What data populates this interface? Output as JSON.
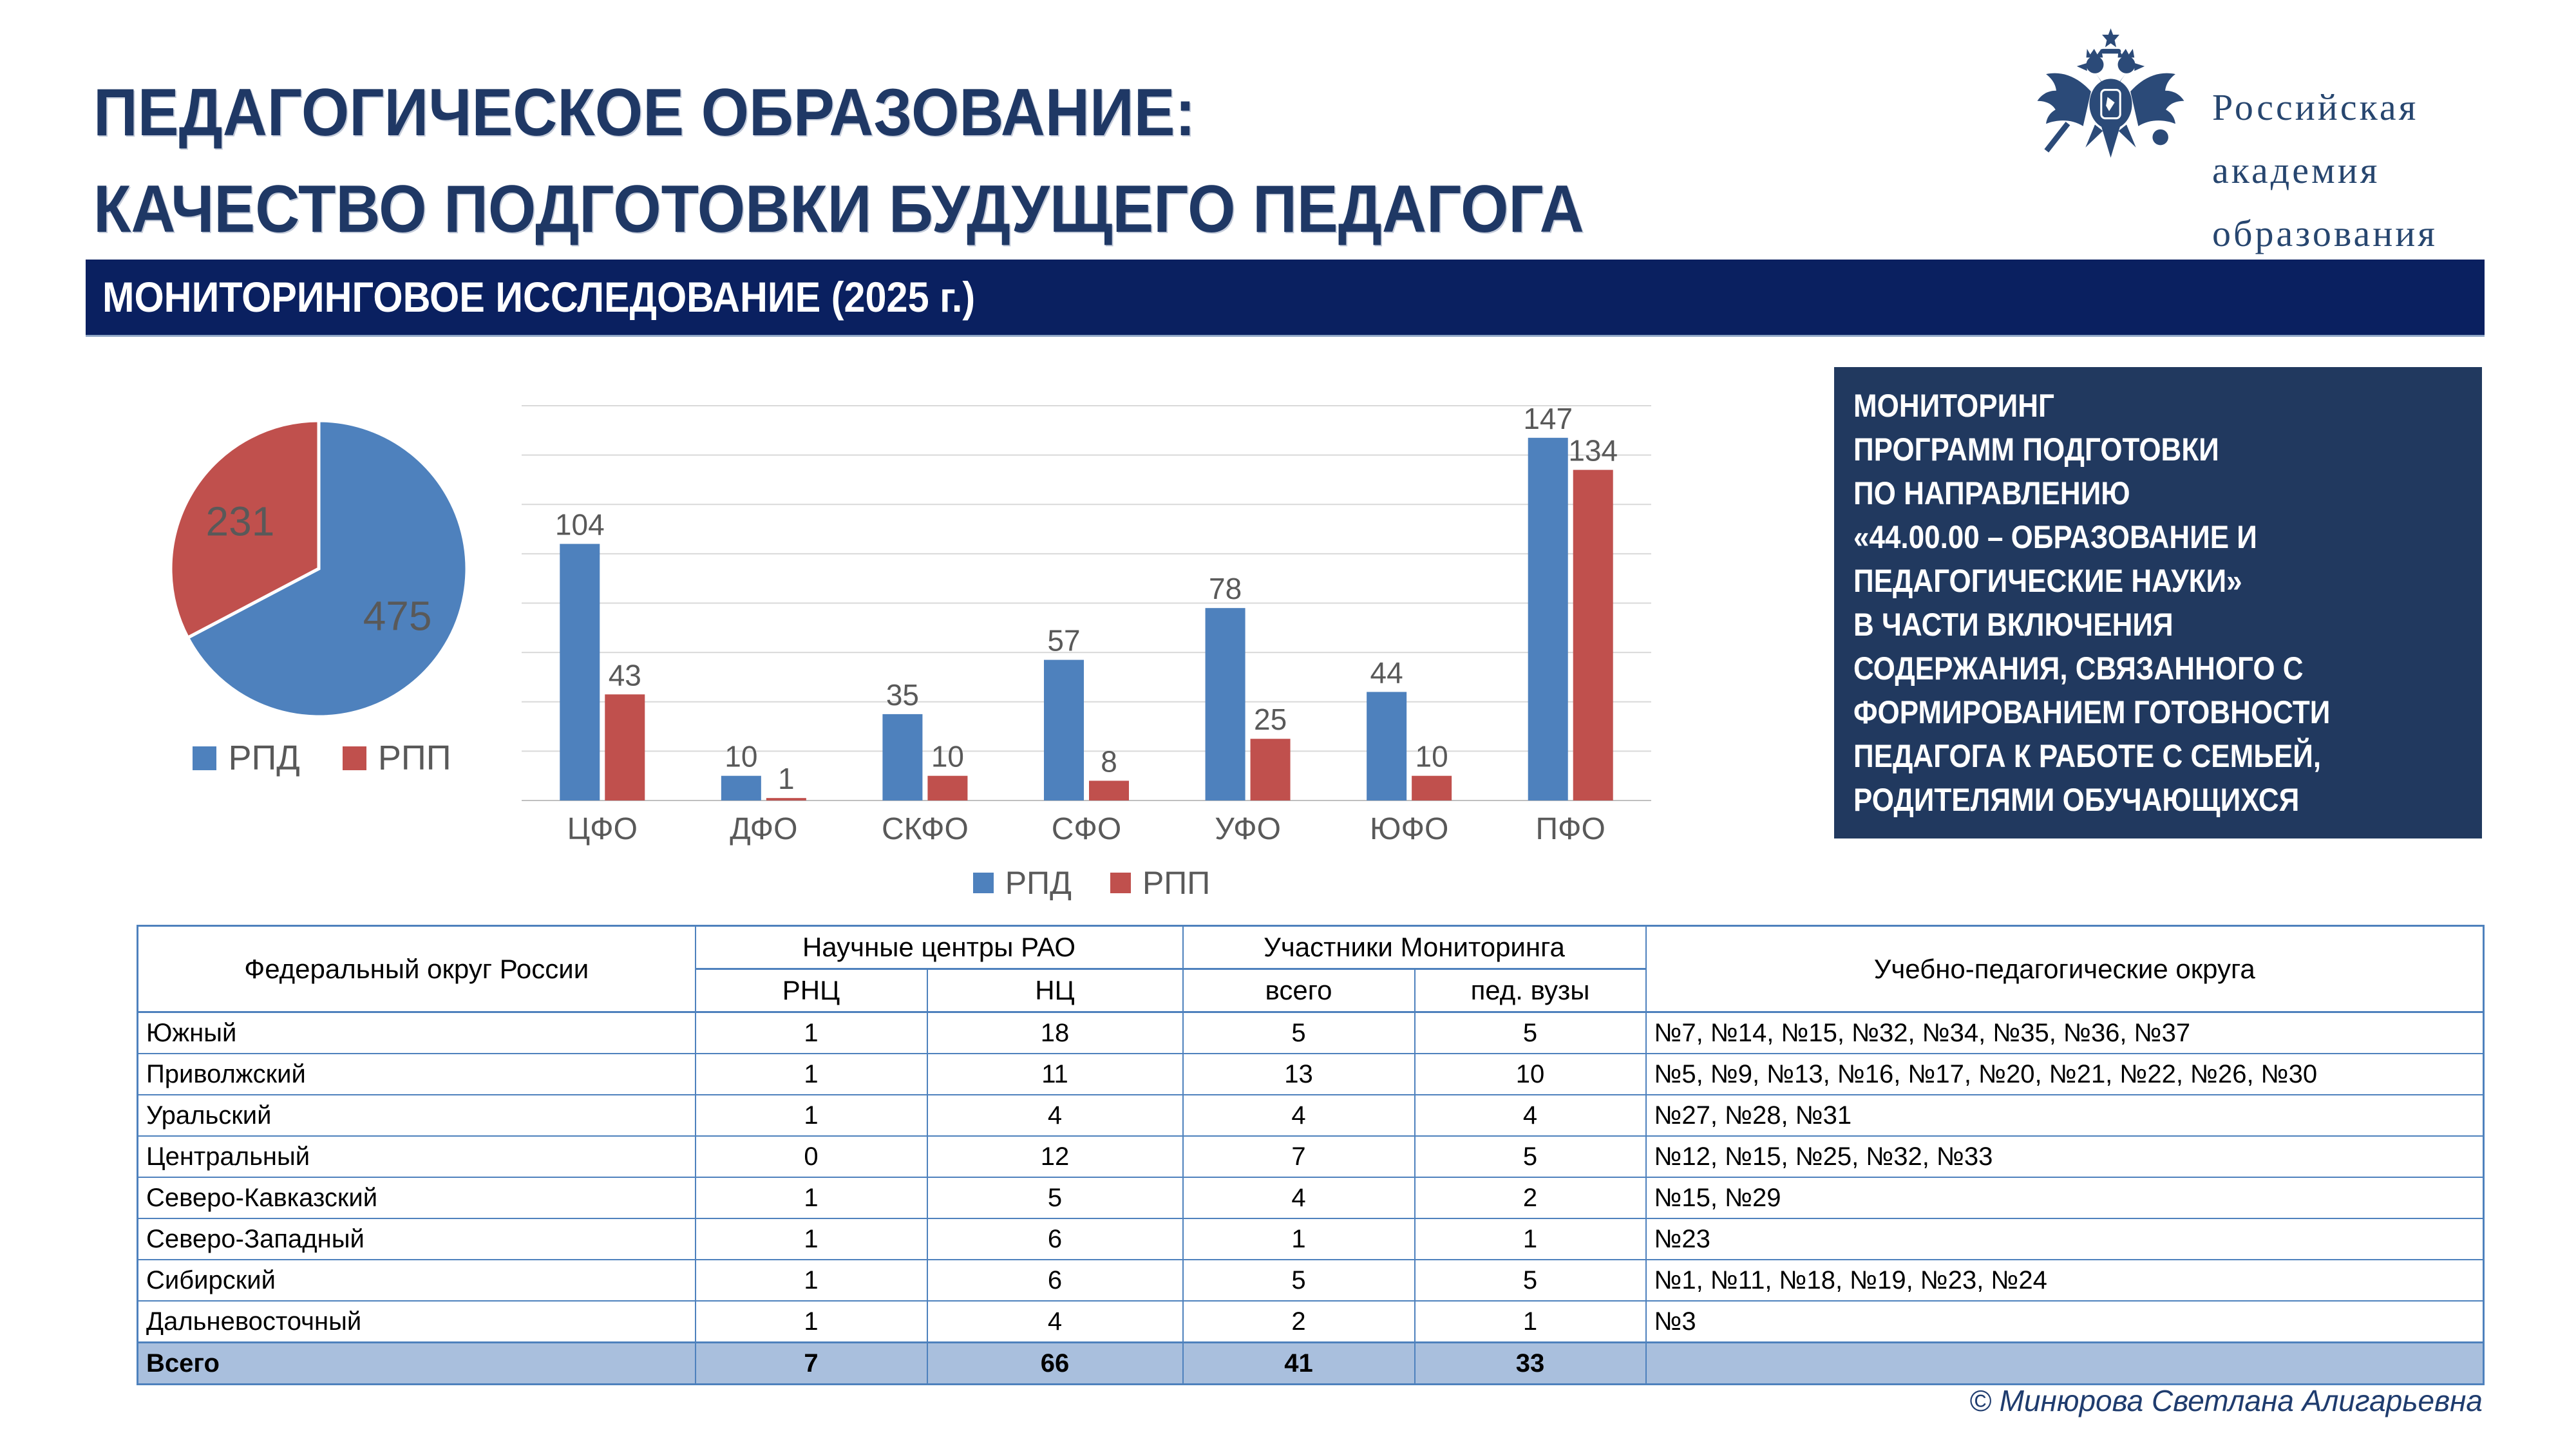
{
  "header": {
    "title_line1": "ПЕДАГОГИЧЕСКОЕ ОБРАЗОВАНИЕ:",
    "title_line2": "КАЧЕСТВО ПОДГОТОВКИ БУДУЩЕГО ПЕДАГОГА",
    "banner": "МОНИТОРИНГОВОЕ ИССЛЕДОВАНИЕ (2025 г.)",
    "logo": {
      "emblem": "double-headed-eagle",
      "line1": "Российская",
      "line2": "академия",
      "line3": "образования"
    }
  },
  "info_box": {
    "lines": [
      "МОНИТОРИНГ",
      "ПРОГРАММ ПОДГОТОВКИ",
      "ПО НАПРАВЛЕНИЮ",
      "«44.00.00 – ОБРАЗОВАНИЕ И",
      "ПЕДАГОГИЧЕСКИЕ НАУКИ»",
      "В ЧАСТИ ВКЛЮЧЕНИЯ",
      "СОДЕРЖАНИЯ, СВЯЗАННОГО С",
      "ФОРМИРОВАНИЕМ ГОТОВНОСТИ",
      "ПЕДАГОГА К РАБОТЕ С СЕМЬЕЙ,",
      "РОДИТЕЛЯМИ ОБУЧАЮЩИХСЯ"
    ]
  },
  "chart_data": [
    {
      "type": "pie",
      "labels": [
        "РПД",
        "РПП"
      ],
      "values": [
        475,
        231
      ],
      "colors": [
        "#4E81BD",
        "#C0504D"
      ],
      "legend": [
        "РПД",
        "РПП"
      ],
      "legend_position": "bottom",
      "start_angle_deg": -90,
      "direction": "clockwise"
    },
    {
      "type": "bar",
      "categories": [
        "ЦФО",
        "ДФО",
        "СКФО",
        "СФО",
        "УФО",
        "ЮФО",
        "ПФО"
      ],
      "series": [
        {
          "name": "РПД",
          "color": "#4E81BD",
          "values": [
            104,
            10,
            35,
            57,
            78,
            44,
            147
          ]
        },
        {
          "name": "РПП",
          "color": "#C0504D",
          "values": [
            43,
            1,
            10,
            8,
            25,
            10,
            134
          ]
        }
      ],
      "ylim": [
        0,
        160
      ],
      "gridline_step": 20,
      "grid": true,
      "legend": [
        "РПД",
        "РПП"
      ],
      "legend_position": "bottom"
    }
  ],
  "table": {
    "header": {
      "col1": "Федеральный округ России",
      "group1": "Научные центры  РАО",
      "group2": "Участники Мониторинга",
      "col6": "Учебно-педагогические округа",
      "sub": [
        "РНЦ",
        "НЦ",
        "всего",
        "пед. вузы"
      ]
    },
    "rows": [
      {
        "district": "Южный",
        "rnc": "1",
        "nc": "18",
        "total": "5",
        "ped": "5",
        "okruga": "№7, №14, №15, №32, №34, №35, №36, №37"
      },
      {
        "district": "Приволжский",
        "rnc": "1",
        "nc": "11",
        "total": "13",
        "ped": "10",
        "okruga": "№5, №9, №13, №16, №17, №20, №21, №22, №26, №30"
      },
      {
        "district": "Уральский",
        "rnc": "1",
        "nc": "4",
        "total": "4",
        "ped": "4",
        "okruga": "№27, №28, №31"
      },
      {
        "district": "Центральный",
        "rnc": "0",
        "nc": "12",
        "total": "7",
        "ped": "5",
        "okruga": "№12, №15, №25, №32, №33"
      },
      {
        "district": "Северо-Кавказский",
        "rnc": "1",
        "nc": "5",
        "total": "4",
        "ped": "2",
        "okruga": "№15, №29"
      },
      {
        "district": "Северо-Западный",
        "rnc": "1",
        "nc": "6",
        "total": "1",
        "ped": "1",
        "okruga": "№23"
      },
      {
        "district": "Сибирский",
        "rnc": "1",
        "nc": "6",
        "total": "5",
        "ped": "5",
        "okruga": "№1, №11, №18, №19, №23, №24"
      },
      {
        "district": "Дальневосточный",
        "rnc": "1",
        "nc": "4",
        "total": "2",
        "ped": "1",
        "okruga": "№3"
      }
    ],
    "total_row": {
      "district": "Всего",
      "rnc": "7",
      "nc": "66",
      "total": "41",
      "ped": "33",
      "okruga": ""
    }
  },
  "footer": {
    "credit": "© Минюрова Светлана Алигарьевна"
  },
  "colors": {
    "title": "#1F3865",
    "banner_bg": "#0A2060",
    "info_box_bg": "#21395F",
    "table_border": "#4E81BD",
    "total_row_bg": "#A9BFDD",
    "chart_text": "#595959",
    "series_blue": "#4E81BD",
    "series_red": "#C0504D",
    "gridline": "#D9D9D9"
  }
}
